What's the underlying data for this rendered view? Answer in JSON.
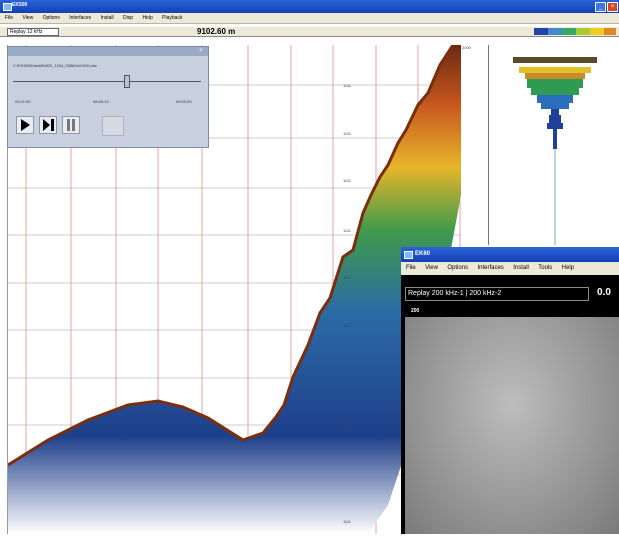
{
  "main_window": {
    "title": "EK500",
    "menu": [
      "File",
      "View",
      "Options",
      "Interfaces",
      "Install",
      "Disp",
      "Help",
      "Playback"
    ],
    "replay_label": "Replay 12 kHz",
    "range_readout": "9102.60 m",
    "palette": [
      "#2244aa",
      "#4488cc",
      "#33aa66",
      "#aacc33",
      "#eecc22",
      "#dd8822",
      "#cc3322"
    ]
  },
  "replay_dialog": {
    "title": "",
    "path": "C:\\EK500\\Data\\Ek500_1204_035kHz\\0300.raw",
    "time_start": "03:01:00",
    "time_current": "08:55:13",
    "time_end": "09:03:00"
  },
  "echogram": {
    "depth_scale_top": "2000",
    "depth_ticks": [
      "1111",
      "1111",
      "1111",
      "1111",
      "1111",
      "1111",
      "1111",
      "1111"
    ]
  },
  "ek60_window": {
    "title": "EK60",
    "menu": [
      "File",
      "View",
      "Options",
      "Interfaces",
      "Install",
      "Tools",
      "Help"
    ],
    "replay_label": "Replay 200 kHz-1 | 200 kHz-2",
    "range_readout": "0.0",
    "range_label": "200"
  }
}
